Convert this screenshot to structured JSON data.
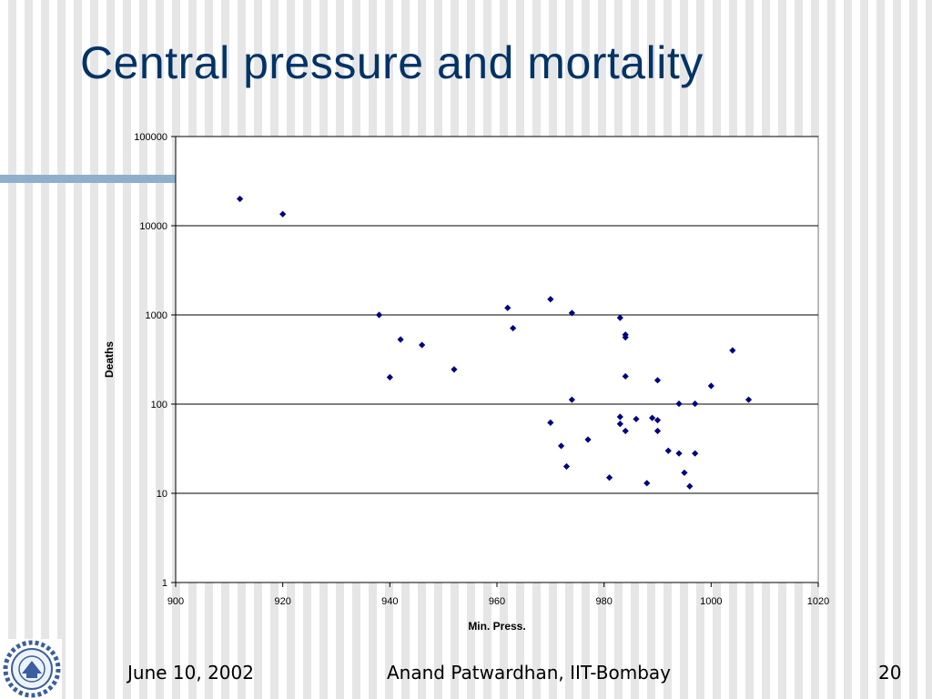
{
  "slide": {
    "title": "Central pressure and mortality",
    "footer_date": "June 10, 2002",
    "footer_author": "Anand Patwardhan, IIT-Bombay",
    "page_number": "20",
    "logo_icon": "iit-bombay-logo-icon"
  },
  "colors": {
    "title": "#003366",
    "rule": "#8fafcb",
    "marker": "#000080"
  },
  "chart_data": {
    "type": "scatter",
    "xlabel": "Min. Press.",
    "ylabel": "Deaths",
    "xlim": [
      900,
      1020
    ],
    "ylim": [
      1,
      100000
    ],
    "yscale": "log",
    "grid": "horizontal",
    "legend": "none",
    "xticks": [
      "900",
      "920",
      "940",
      "960",
      "980",
      "1000",
      "1020"
    ],
    "yticks": [
      "1",
      "10",
      "100",
      "1000",
      "10000",
      "100000"
    ],
    "points": [
      {
        "x": 912,
        "y": 20000
      },
      {
        "x": 920,
        "y": 13500
      },
      {
        "x": 938,
        "y": 1000
      },
      {
        "x": 940,
        "y": 200
      },
      {
        "x": 942,
        "y": 530
      },
      {
        "x": 946,
        "y": 460
      },
      {
        "x": 952,
        "y": 245
      },
      {
        "x": 962,
        "y": 1200
      },
      {
        "x": 963,
        "y": 710
      },
      {
        "x": 970,
        "y": 1500
      },
      {
        "x": 970,
        "y": 62
      },
      {
        "x": 972,
        "y": 34
      },
      {
        "x": 973,
        "y": 20
      },
      {
        "x": 974,
        "y": 1050
      },
      {
        "x": 974,
        "y": 112
      },
      {
        "x": 977,
        "y": 40
      },
      {
        "x": 981,
        "y": 15
      },
      {
        "x": 983,
        "y": 930
      },
      {
        "x": 983,
        "y": 72
      },
      {
        "x": 983,
        "y": 60
      },
      {
        "x": 984,
        "y": 600
      },
      {
        "x": 984,
        "y": 560
      },
      {
        "x": 984,
        "y": 205
      },
      {
        "x": 984,
        "y": 50
      },
      {
        "x": 986,
        "y": 68
      },
      {
        "x": 988,
        "y": 13
      },
      {
        "x": 989,
        "y": 70
      },
      {
        "x": 990,
        "y": 185
      },
      {
        "x": 990,
        "y": 66
      },
      {
        "x": 990,
        "y": 50
      },
      {
        "x": 992,
        "y": 30
      },
      {
        "x": 994,
        "y": 101
      },
      {
        "x": 994,
        "y": 28
      },
      {
        "x": 995,
        "y": 17
      },
      {
        "x": 996,
        "y": 12
      },
      {
        "x": 997,
        "y": 101
      },
      {
        "x": 997,
        "y": 28
      },
      {
        "x": 1000,
        "y": 160
      },
      {
        "x": 1004,
        "y": 400
      },
      {
        "x": 1007,
        "y": 112
      }
    ]
  }
}
